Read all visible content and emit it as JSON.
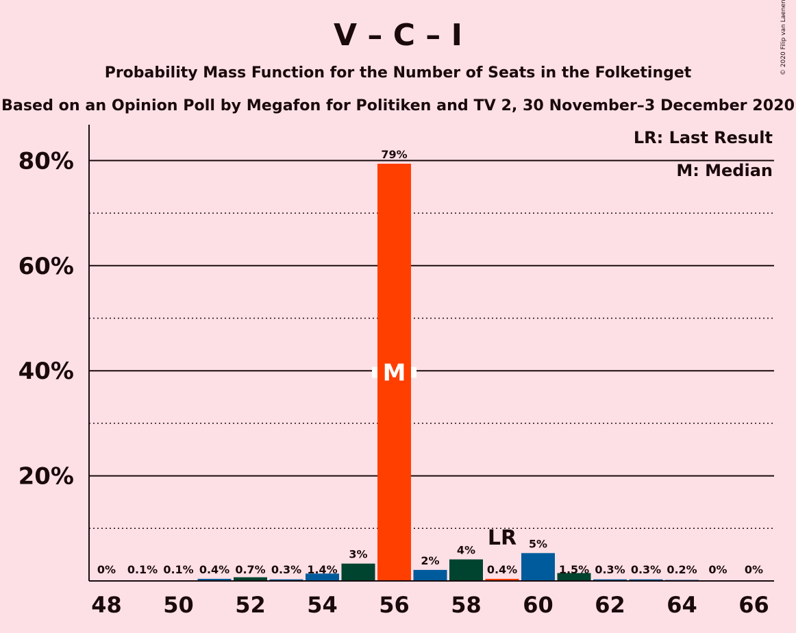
{
  "chart_data": {
    "type": "bar",
    "title": "V – C – I",
    "subtitle": "Probability Mass Function for the Number of Seats in the Folketinget",
    "subtitle2": "Based on an Opinion Poll by Megafon for Politiken and TV 2, 30 November–3 December 2020",
    "copyright": "© 2020 Filip van Laenen",
    "legend": {
      "last_result": "LR: Last Result",
      "median": "M: Median",
      "placement": "top-right"
    },
    "ylim": [
      0,
      87
    ],
    "yticks": [
      {
        "value": 20,
        "label": "20%"
      },
      {
        "value": 40,
        "label": "40%"
      },
      {
        "value": 60,
        "label": "60%"
      },
      {
        "value": 80,
        "label": "80%"
      }
    ],
    "ygrid_dotted": [
      10,
      30,
      50,
      70
    ],
    "xticks": [
      "48",
      "50",
      "52",
      "54",
      "56",
      "58",
      "60",
      "62",
      "64",
      "66"
    ],
    "categories": [
      48,
      49,
      50,
      51,
      52,
      53,
      54,
      55,
      56,
      57,
      58,
      59,
      60,
      61,
      62,
      63,
      64,
      65,
      66
    ],
    "values": [
      0,
      0.1,
      0.1,
      0.4,
      0.7,
      0.3,
      1.4,
      3.3,
      79.4,
      2.1,
      4.1,
      0.4,
      5.3,
      1.5,
      0.3,
      0.3,
      0.2,
      0,
      0
    ],
    "value_labels": [
      "0%",
      "0.1%",
      "0.1%",
      "0.4%",
      "0.7%",
      "0.3%",
      "1.4%",
      "3%",
      "79%",
      "2%",
      "4%",
      "0.4%",
      "5%",
      "1.5%",
      "0.3%",
      "0.3%",
      "0.2%",
      "0%",
      "0%"
    ],
    "party_colors": {
      "V": "#005b9c",
      "C": "#00432f",
      "I": "#ff3f00"
    },
    "bar_colors": [
      "#005b9c",
      "#005b9c",
      "#005b9c",
      "#005b9c",
      "#00432f",
      "#005b9c",
      "#005b9c",
      "#00432f",
      "#ff3f00",
      "#005b9c",
      "#00432f",
      "#ff3f00",
      "#005b9c",
      "#00432f",
      "#005b9c",
      "#005b9c",
      "#005b9c",
      "#005b9c",
      "#005b9c"
    ],
    "median_seat": 56,
    "median_marker": "M",
    "last_result_seat": 59,
    "last_result_marker": "LR"
  }
}
